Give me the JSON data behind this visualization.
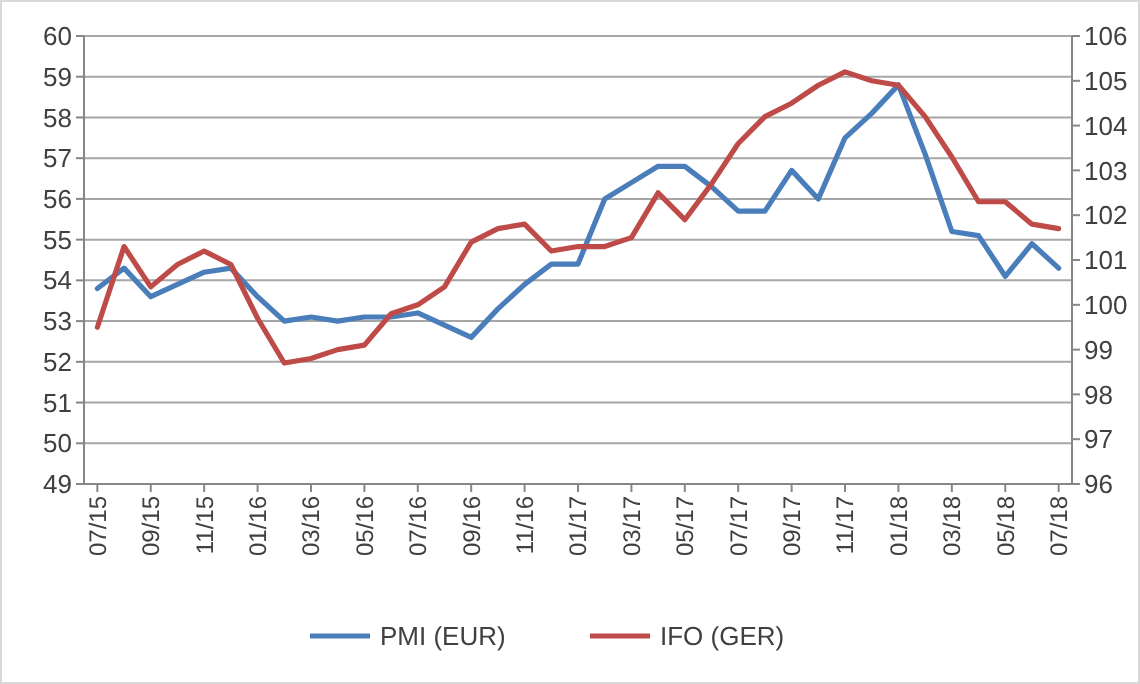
{
  "chart_data": {
    "type": "line",
    "categories": [
      "07/15",
      null,
      "09/15",
      null,
      "11/15",
      null,
      "01/16",
      null,
      "03/16",
      null,
      "05/16",
      null,
      "07/16",
      null,
      "09/16",
      null,
      "11/16",
      null,
      "01/17",
      null,
      "03/17",
      null,
      "05/17",
      null,
      "07/17",
      null,
      "09/17",
      null,
      "11/17",
      null,
      "01/18",
      null,
      "03/18",
      null,
      "05/18",
      null,
      "07/18"
    ],
    "series": [
      {
        "name": "PMI (EUR)",
        "color": "#4a7ebb",
        "values": [
          53.8,
          54.3,
          53.6,
          53.9,
          54.2,
          54.3,
          53.6,
          53.0,
          53.1,
          53.0,
          53.1,
          53.1,
          53.2,
          52.9,
          52.6,
          53.3,
          53.9,
          54.4,
          54.4,
          56.0,
          56.4,
          56.8,
          56.8,
          56.3,
          55.7,
          55.7,
          56.7,
          56.0,
          57.5,
          58.1,
          58.8,
          57.1,
          55.2,
          55.1,
          54.1,
          54.9,
          54.3
        ]
      },
      {
        "name": "IFO (GER)",
        "color": "#be4b48",
        "axis": "y2",
        "values": [
          99.5,
          101.3,
          100.4,
          100.9,
          101.2,
          100.9,
          99.7,
          98.7,
          98.8,
          99.0,
          99.1,
          99.8,
          100.0,
          100.4,
          101.4,
          101.7,
          101.8,
          101.2,
          101.3,
          101.3,
          101.5,
          102.5,
          101.9,
          102.7,
          103.6,
          104.2,
          104.5,
          104.9,
          105.2,
          105.0,
          104.9,
          104.2,
          103.3,
          102.3,
          102.3,
          101.8,
          101.7
        ]
      }
    ],
    "ylim": [
      49,
      60
    ],
    "yticks": [
      49,
      50,
      51,
      52,
      53,
      54,
      55,
      56,
      57,
      58,
      59,
      60
    ],
    "y2lim": [
      96,
      106
    ],
    "y2ticks": [
      96,
      97,
      98,
      99,
      100,
      101,
      102,
      103,
      104,
      105,
      106
    ],
    "grid": "y",
    "legend": "bottom",
    "marker": "none",
    "line_style": "solid"
  }
}
